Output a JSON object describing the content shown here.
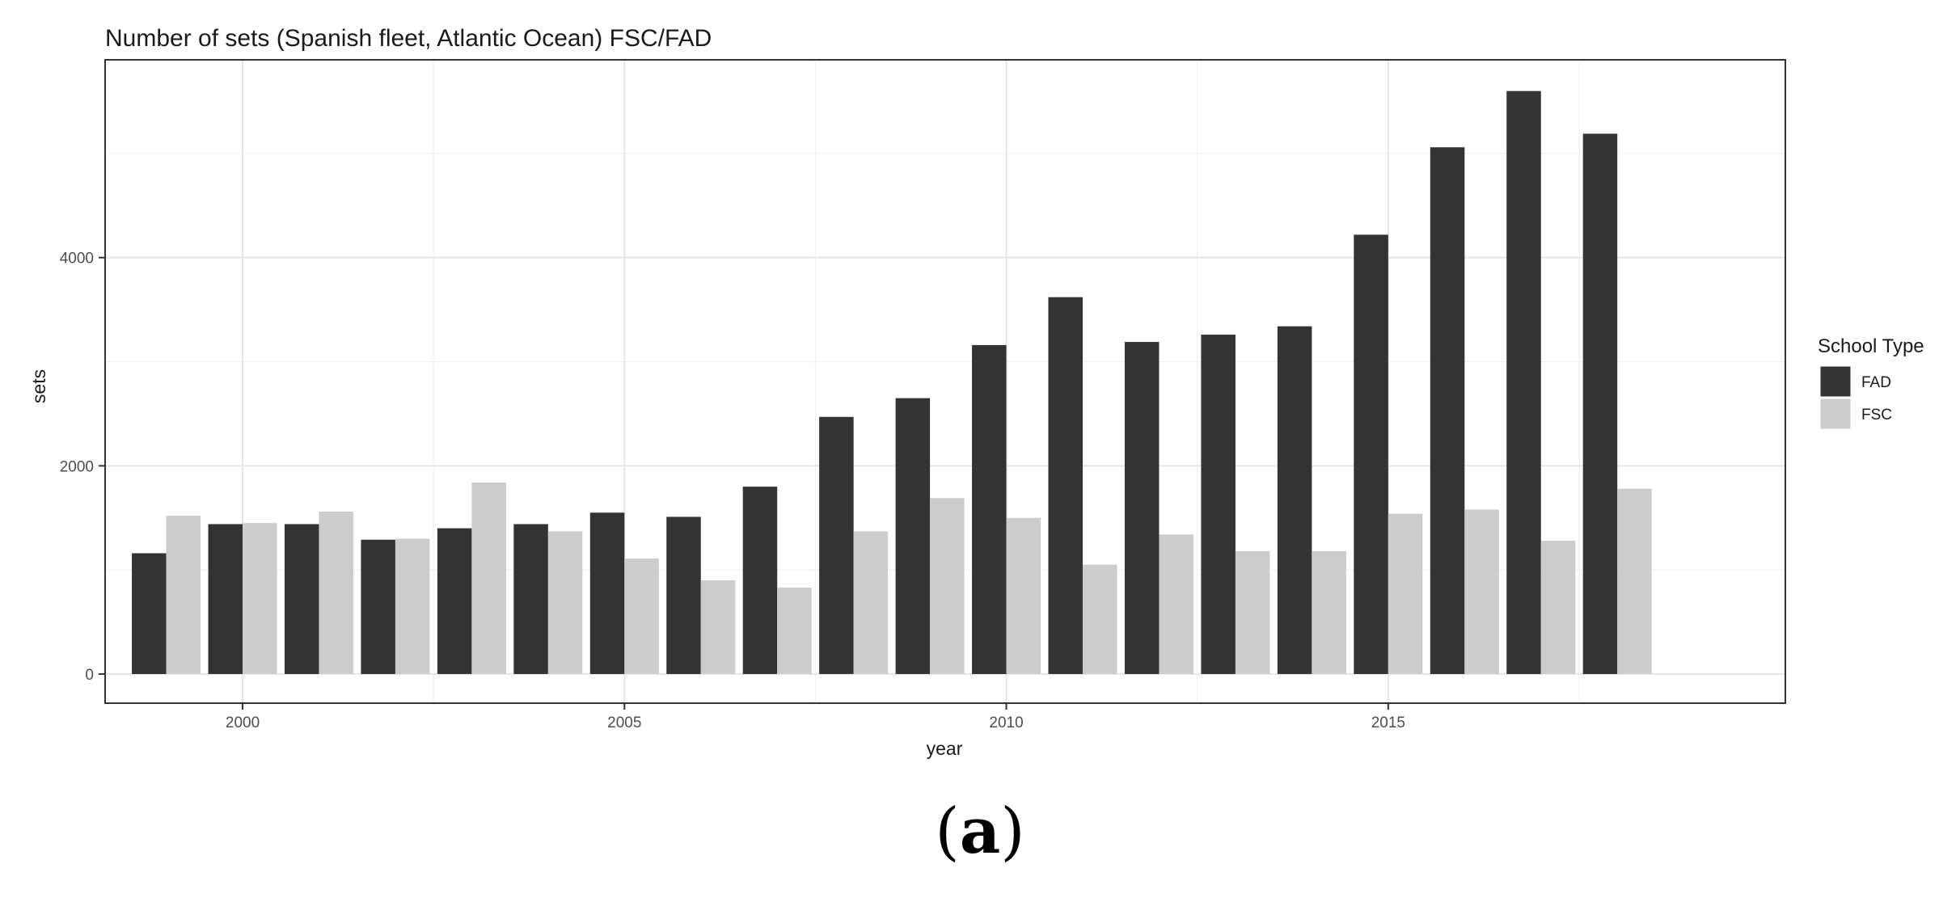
{
  "chart_data": {
    "type": "bar",
    "title": "Number of sets (Spanish fleet, Atlantic Ocean) FSC/FAD",
    "xlabel": "year",
    "ylabel": "sets",
    "categories": [
      1999,
      2000,
      2001,
      2002,
      2003,
      2004,
      2005,
      2006,
      2007,
      2008,
      2009,
      2010,
      2011,
      2012,
      2013,
      2014,
      2015,
      2016,
      2017,
      2018
    ],
    "series": [
      {
        "name": "FAD",
        "color": "#333333",
        "values": [
          1160,
          1440,
          1440,
          1290,
          1400,
          1440,
          1550,
          1510,
          1800,
          2470,
          2650,
          3160,
          3620,
          3190,
          3260,
          3340,
          4220,
          5060,
          5600,
          5190
        ]
      },
      {
        "name": "FSC",
        "color": "#cccccc",
        "values": [
          1520,
          1450,
          1560,
          1300,
          1840,
          1370,
          1110,
          900,
          830,
          1370,
          1690,
          1500,
          1050,
          1340,
          1180,
          1180,
          1540,
          1580,
          1280,
          1780
        ]
      }
    ],
    "x_ticks": [
      "2000",
      "2005",
      "2010",
      "2015"
    ],
    "y_ticks": [
      "0",
      "2000",
      "4000"
    ],
    "xlim": [
      1998.2,
      2020.2
    ],
    "ylim": [
      -280,
      5900
    ],
    "grid": true,
    "legend": {
      "title": "School Type",
      "position": "right",
      "entries": [
        "FAD",
        "FSC"
      ]
    }
  },
  "caption": {
    "open": "(",
    "letter": "a",
    "close": ")"
  }
}
